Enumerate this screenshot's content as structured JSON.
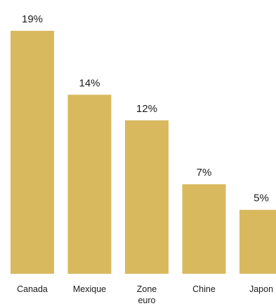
{
  "chart_data": {
    "type": "bar",
    "categories": [
      [
        "Canada"
      ],
      [
        "Mexique"
      ],
      [
        "Zone",
        "euro"
      ],
      [
        "Chine"
      ],
      [
        "Japon"
      ]
    ],
    "values": [
      19,
      14,
      12,
      7,
      5
    ],
    "value_labels": [
      "19%",
      "14%",
      "12%",
      "7%",
      "5%"
    ],
    "title": "",
    "xlabel": "",
    "ylabel": "",
    "ylim": [
      0,
      19
    ],
    "grid": false,
    "legend": "none",
    "bar_color": "#d8b95e"
  }
}
